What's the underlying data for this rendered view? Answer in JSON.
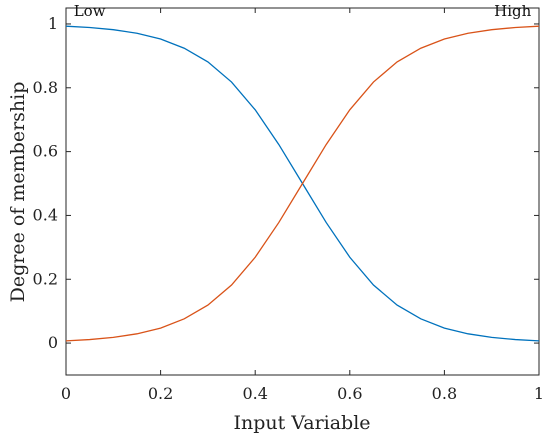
{
  "chart_data": {
    "type": "line",
    "title": "",
    "xlabel": "Input Variable",
    "ylabel": "Degree of membership",
    "xlim": [
      0,
      1
    ],
    "ylim": [
      -0.1,
      1.05
    ],
    "xticks": [
      0,
      0.2,
      0.4,
      0.6,
      0.8,
      1
    ],
    "xtick_labels": [
      "0",
      "0.2",
      "0.4",
      "0.6",
      "0.8",
      "1"
    ],
    "yticks": [
      0,
      0.2,
      0.4,
      0.6,
      0.8,
      1
    ],
    "ytick_labels": [
      "0",
      "0.2",
      "0.4",
      "0.6",
      "0.8",
      "1"
    ],
    "grid": false,
    "annotations": [
      {
        "text": "Low",
        "x": 0.01,
        "y": 1.04,
        "anchor": "start"
      },
      {
        "text": "High",
        "x": 0.99,
        "y": 1.04,
        "anchor": "end"
      }
    ],
    "x": [
      0,
      0.05,
      0.1,
      0.15,
      0.2,
      0.25,
      0.3,
      0.35,
      0.4,
      0.45,
      0.5,
      0.55,
      0.6,
      0.65,
      0.7,
      0.75,
      0.8,
      0.85,
      0.9,
      0.95,
      1
    ],
    "series": [
      {
        "color": "#0072BD",
        "values": [
          0.993,
          0.989,
          0.982,
          0.971,
          0.953,
          0.924,
          0.881,
          0.818,
          0.731,
          0.622,
          0.5,
          0.378,
          0.269,
          0.182,
          0.119,
          0.076,
          0.047,
          0.029,
          0.018,
          0.011,
          0.007
        ]
      },
      {
        "color": "#D95319",
        "values": [
          0.007,
          0.011,
          0.018,
          0.029,
          0.047,
          0.076,
          0.119,
          0.182,
          0.269,
          0.378,
          0.5,
          0.622,
          0.731,
          0.818,
          0.881,
          0.924,
          0.953,
          0.971,
          0.982,
          0.989,
          0.993
        ]
      }
    ]
  }
}
